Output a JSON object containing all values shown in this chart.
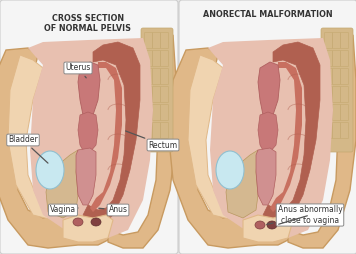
{
  "title_left": "CROSS SECTION\nOF NORMAL PELVIS",
  "title_right": "ANORECTAL MALFORMATION",
  "label_right": "Anus abnormally\nclose to vagina",
  "bg_color": "#e8e8e8",
  "panel_bg": "#f5f5f5",
  "panel_edge": "#cccccc",
  "skin_light": "#f0d4b0",
  "skin_mid": "#e0b888",
  "skin_dark": "#c89a60",
  "hip_color": "#d4a870",
  "hip_inner": "#e8c898",
  "spine_tan": "#d4b888",
  "spine_grid": "#c4a870",
  "rectum_dark": "#b06050",
  "rectum_mid": "#c87060",
  "rectum_light": "#d08878",
  "uterus_color": "#c87878",
  "uterus_dark": "#b06060",
  "vagina_color": "#d09090",
  "bladder_fill": "#c8e8f0",
  "bladder_edge": "#90c0d0",
  "tissue_pink": "#e8c0b0",
  "pelvic_floor": "#c8a878",
  "text_color": "#333333",
  "box_fill": "#ffffff",
  "box_edge": "#888888",
  "line_color": "#555555"
}
